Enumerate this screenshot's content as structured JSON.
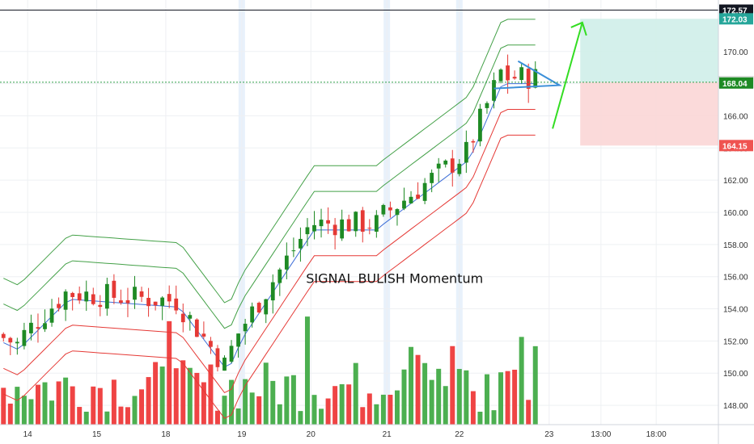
{
  "chart_data": {
    "type": "candlestick",
    "annotation": "SIGNAL BULISH Momentum",
    "y_axis": {
      "ylim": [
        146.8,
        173.2
      ],
      "ticks": [
        "148.00",
        "150.00",
        "152.00",
        "154.00",
        "156.00",
        "158.00",
        "160.00",
        "162.00",
        "164.00",
        "166.00",
        "168.00",
        "170.00"
      ]
    },
    "x_axis": {
      "xlim": [
        0,
        104
      ],
      "ticks": [
        {
          "label": "14",
          "x": 4
        },
        {
          "label": "15",
          "x": 14
        },
        {
          "label": "18",
          "x": 24
        },
        {
          "label": "19",
          "x": 35
        },
        {
          "label": "20",
          "x": 45
        },
        {
          "label": "21",
          "x": 56
        },
        {
          "label": "22",
          "x": 66.5
        },
        {
          "label": "23",
          "x": 79.5
        },
        {
          "label": "13:00",
          "x": 87
        },
        {
          "label": "18:00",
          "x": 95
        }
      ]
    },
    "price_levels": [
      {
        "label": "172.57",
        "value": 172.57,
        "color": "#131722",
        "style": "solid"
      },
      {
        "label": "172.03",
        "value": 172.03,
        "color": "#26a69a"
      },
      {
        "label": "168.09",
        "value": 168.09,
        "color": "#ffffff",
        "style": "dotted",
        "line_color": "#2e9f48"
      },
      {
        "label": "168.04",
        "value": 168.04,
        "color": "#1e8a24"
      },
      {
        "label": "164.15",
        "value": 164.15,
        "color": "#ef5350"
      }
    ],
    "volume_colors": {
      "up": "#4caf50",
      "down": "#ef4444"
    },
    "colors": {
      "up": "#1e8a24",
      "down": "#e53935",
      "band_green": "#43a047",
      "band_red": "#e53935",
      "ma_blue": "#3f6fd8",
      "arrow": "#33dd22",
      "triangle": "#3b8fd9"
    }
  }
}
